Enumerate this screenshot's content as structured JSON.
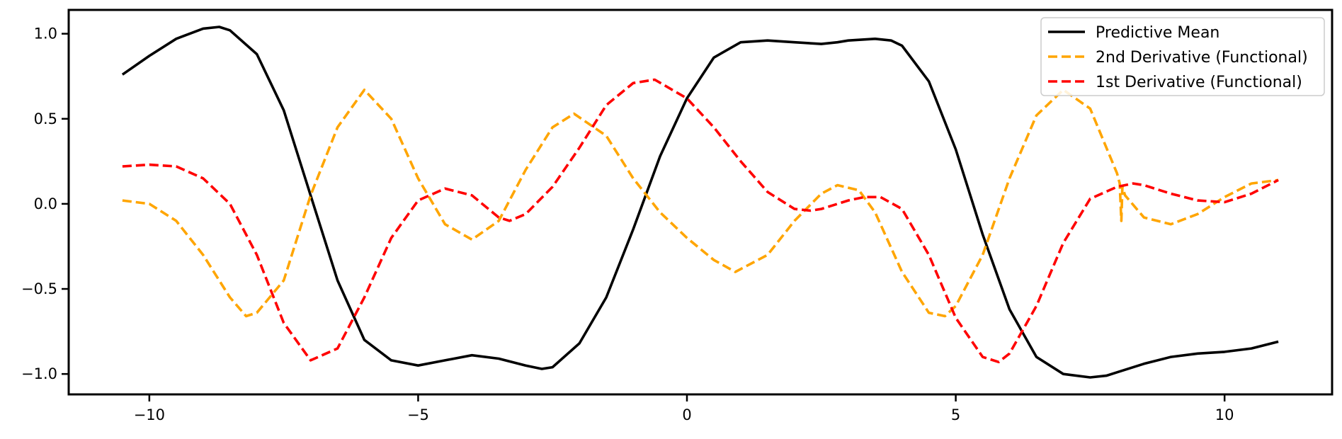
{
  "chart_data": {
    "type": "line",
    "title": "",
    "xlabel": "",
    "ylabel": "",
    "xlim": [
      -11.5,
      12.0
    ],
    "ylim": [
      -1.12,
      1.14
    ],
    "grid": false,
    "legend_position": "top-right",
    "x_ticks": [
      -10,
      -5,
      0,
      5,
      10
    ],
    "x_tick_labels": [
      "−10",
      "−5",
      "0",
      "5",
      "10"
    ],
    "y_ticks": [
      1.0,
      0.5,
      0.0,
      -0.5,
      -1.0
    ],
    "y_tick_labels": [
      "1.0",
      "0.5",
      "0.0",
      "−0.5",
      "−1.0"
    ],
    "series": [
      {
        "name": "Predictive Mean",
        "color": "#000000",
        "dashed": false,
        "x": [
          -10.5,
          -10.0,
          -9.5,
          -9.0,
          -8.7,
          -8.5,
          -8.0,
          -7.5,
          -7.0,
          -6.5,
          -6.0,
          -5.5,
          -5.0,
          -4.5,
          -4.0,
          -3.5,
          -3.0,
          -2.7,
          -2.5,
          -2.0,
          -1.5,
          -1.0,
          -0.5,
          0.0,
          0.5,
          1.0,
          1.5,
          2.0,
          2.5,
          2.8,
          3.0,
          3.5,
          3.8,
          4.0,
          4.5,
          5.0,
          5.5,
          6.0,
          6.5,
          7.0,
          7.5,
          7.8,
          8.0,
          8.5,
          9.0,
          9.5,
          10.0,
          10.5,
          11.0
        ],
        "y": [
          0.76,
          0.87,
          0.97,
          1.03,
          1.04,
          1.02,
          0.88,
          0.55,
          0.05,
          -0.45,
          -0.8,
          -0.92,
          -0.95,
          -0.92,
          -0.89,
          -0.91,
          -0.95,
          -0.97,
          -0.96,
          -0.82,
          -0.55,
          -0.15,
          0.28,
          0.62,
          0.86,
          0.95,
          0.96,
          0.95,
          0.94,
          0.95,
          0.96,
          0.97,
          0.96,
          0.93,
          0.72,
          0.32,
          -0.18,
          -0.62,
          -0.9,
          -1.0,
          -1.02,
          -1.01,
          -0.99,
          -0.94,
          -0.9,
          -0.88,
          -0.87,
          -0.85,
          -0.81
        ]
      },
      {
        "name": "2nd Derivative (Functional)",
        "color": "#FFA500",
        "dashed": true,
        "x": [
          -10.5,
          -10.0,
          -9.5,
          -9.0,
          -8.5,
          -8.2,
          -8.0,
          -7.5,
          -7.0,
          -6.5,
          -6.0,
          -5.5,
          -5.0,
          -4.5,
          -4.0,
          -3.5,
          -3.0,
          -2.5,
          -2.1,
          -1.5,
          -1.0,
          -0.5,
          0.0,
          0.5,
          0.9,
          1.5,
          2.0,
          2.5,
          2.8,
          3.2,
          3.5,
          4.0,
          4.5,
          4.8,
          5.0,
          5.5,
          6.0,
          6.5,
          7.0,
          7.5,
          8.0,
          8.05,
          8.08,
          8.1,
          8.15,
          8.5,
          9.0,
          9.5,
          10.0,
          10.5,
          11.0
        ],
        "y": [
          0.02,
          0.0,
          -0.1,
          -0.3,
          -0.55,
          -0.66,
          -0.64,
          -0.45,
          0.05,
          0.45,
          0.67,
          0.5,
          0.15,
          -0.12,
          -0.21,
          -0.1,
          0.2,
          0.45,
          0.53,
          0.4,
          0.15,
          -0.05,
          -0.2,
          -0.33,
          -0.4,
          -0.3,
          -0.1,
          0.06,
          0.11,
          0.08,
          -0.05,
          -0.4,
          -0.64,
          -0.66,
          -0.6,
          -0.3,
          0.15,
          0.52,
          0.67,
          0.56,
          0.18,
          0.12,
          -0.1,
          0.1,
          0.05,
          -0.08,
          -0.12,
          -0.06,
          0.04,
          0.12,
          0.14
        ]
      },
      {
        "name": "1st Derivative (Functional)",
        "color": "#FF0000",
        "dashed": true,
        "x": [
          -10.5,
          -10.0,
          -9.5,
          -9.0,
          -8.5,
          -8.0,
          -7.5,
          -7.0,
          -6.5,
          -6.0,
          -5.5,
          -5.0,
          -4.5,
          -4.0,
          -3.5,
          -3.3,
          -3.0,
          -2.5,
          -2.0,
          -1.5,
          -1.0,
          -0.6,
          0.0,
          0.5,
          1.0,
          1.5,
          2.0,
          2.3,
          2.5,
          3.0,
          3.3,
          3.6,
          4.0,
          4.5,
          5.0,
          5.5,
          5.8,
          6.0,
          6.5,
          7.0,
          7.5,
          8.0,
          8.3,
          8.5,
          9.0,
          9.5,
          10.0,
          10.5,
          11.0
        ],
        "y": [
          0.22,
          0.23,
          0.22,
          0.15,
          0.0,
          -0.3,
          -0.7,
          -0.92,
          -0.85,
          -0.55,
          -0.2,
          0.02,
          0.09,
          0.05,
          -0.08,
          -0.1,
          -0.06,
          0.1,
          0.33,
          0.58,
          0.71,
          0.73,
          0.62,
          0.45,
          0.25,
          0.07,
          -0.03,
          -0.04,
          -0.03,
          0.02,
          0.04,
          0.04,
          -0.03,
          -0.3,
          -0.67,
          -0.9,
          -0.93,
          -0.88,
          -0.6,
          -0.23,
          0.03,
          0.1,
          0.12,
          0.11,
          0.06,
          0.02,
          0.01,
          0.06,
          0.14
        ]
      }
    ]
  }
}
